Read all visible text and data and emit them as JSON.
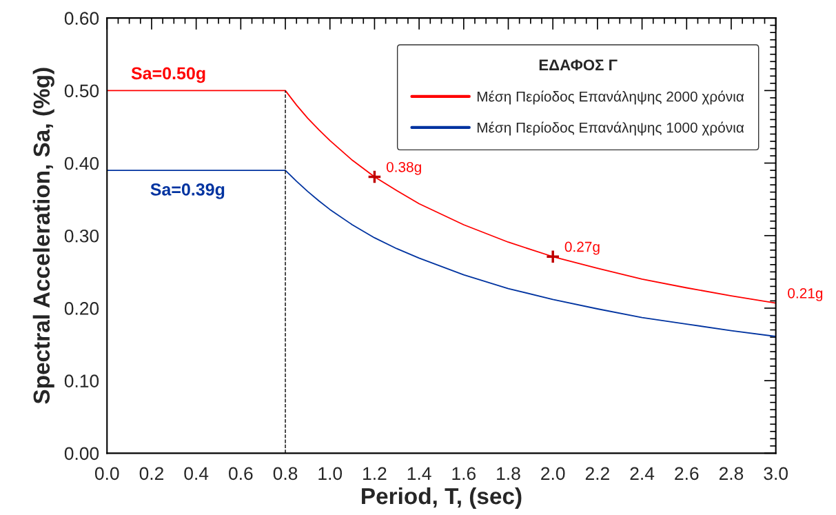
{
  "chart_data": {
    "type": "line",
    "xlabel": "Period, T, (sec)",
    "ylabel": "Spectral Acceleration, Sa, (%g)",
    "legend_title": "ΕΔΑΦΟΣ Γ",
    "legend": "top right",
    "grid": false,
    "xlim": [
      0,
      3.0
    ],
    "ylim": [
      0,
      0.6
    ],
    "xticks": [
      {
        "value": 0,
        "label": "0.0"
      },
      {
        "value": 0.2,
        "label": "0.2"
      },
      {
        "value": 0.4,
        "label": "0.4"
      },
      {
        "value": 0.6,
        "label": "0.6"
      },
      {
        "value": 0.8,
        "label": "0.8"
      },
      {
        "value": 1.0,
        "label": "1.0"
      },
      {
        "value": 1.2,
        "label": "1.2"
      },
      {
        "value": 1.4,
        "label": "1.4"
      },
      {
        "value": 1.6,
        "label": "1.6"
      },
      {
        "value": 1.8,
        "label": "1.8"
      },
      {
        "value": 2.0,
        "label": "2.0"
      },
      {
        "value": 2.2,
        "label": "2.2"
      },
      {
        "value": 2.4,
        "label": "2.4"
      },
      {
        "value": 2.6,
        "label": "2.6"
      },
      {
        "value": 2.8,
        "label": "2.8"
      },
      {
        "value": 3.0,
        "label": "3.0"
      }
    ],
    "yticks": [
      {
        "value": 0,
        "label": "0.00"
      },
      {
        "value": 0.1,
        "label": "0.10"
      },
      {
        "value": 0.2,
        "label": "0.20"
      },
      {
        "value": 0.3,
        "label": "0.30"
      },
      {
        "value": 0.4,
        "label": "0.40"
      },
      {
        "value": 0.5,
        "label": "0.50"
      },
      {
        "value": 0.6,
        "label": "0.60"
      }
    ],
    "x": [
      0,
      0.8,
      0.85,
      0.9,
      0.95,
      1.0,
      1.1,
      1.2,
      1.3,
      1.4,
      1.6,
      1.8,
      2.0,
      2.2,
      2.4,
      2.6,
      2.8,
      3.0
    ],
    "series": [
      {
        "name": "Μέση Περίοδος Επανάληψης 2000 χρόνια",
        "color": "#ff0000",
        "values": [
          0.5,
          0.5,
          0.48,
          0.462,
          0.446,
          0.431,
          0.404,
          0.381,
          0.362,
          0.344,
          0.315,
          0.291,
          0.271,
          0.255,
          0.24,
          0.228,
          0.217,
          0.207
        ]
      },
      {
        "name": "Μέση Περίοδος Επανάληψης 1000 χρόνια",
        "color": "#0033a0",
        "values": [
          0.39,
          0.39,
          0.375,
          0.361,
          0.348,
          0.336,
          0.315,
          0.297,
          0.282,
          0.269,
          0.246,
          0.227,
          0.212,
          0.199,
          0.187,
          0.178,
          0.169,
          0.161
        ]
      },
      {
        "type": "scatter",
        "marker": "cross",
        "color": "#c00000",
        "x": [
          1.2,
          2.0
        ],
        "values": [
          0.381,
          0.271
        ]
      }
    ],
    "ref_lines": [
      {
        "axis": "x",
        "value": 0.8,
        "color": "#000000",
        "line_style": "dashed"
      }
    ],
    "annotations": [
      {
        "text": "Sa=0.50g",
        "x": 0,
        "y": 0.5
      },
      {
        "text": "Sa=0.39g",
        "x": 0,
        "y": 0.39
      },
      {
        "text": "0.38g",
        "x": 1.2,
        "y": 0.381
      },
      {
        "text": "0.27g",
        "x": 2.0,
        "y": 0.271
      },
      {
        "text": "0.21g",
        "x": 3.0,
        "y": 0.207
      }
    ]
  }
}
